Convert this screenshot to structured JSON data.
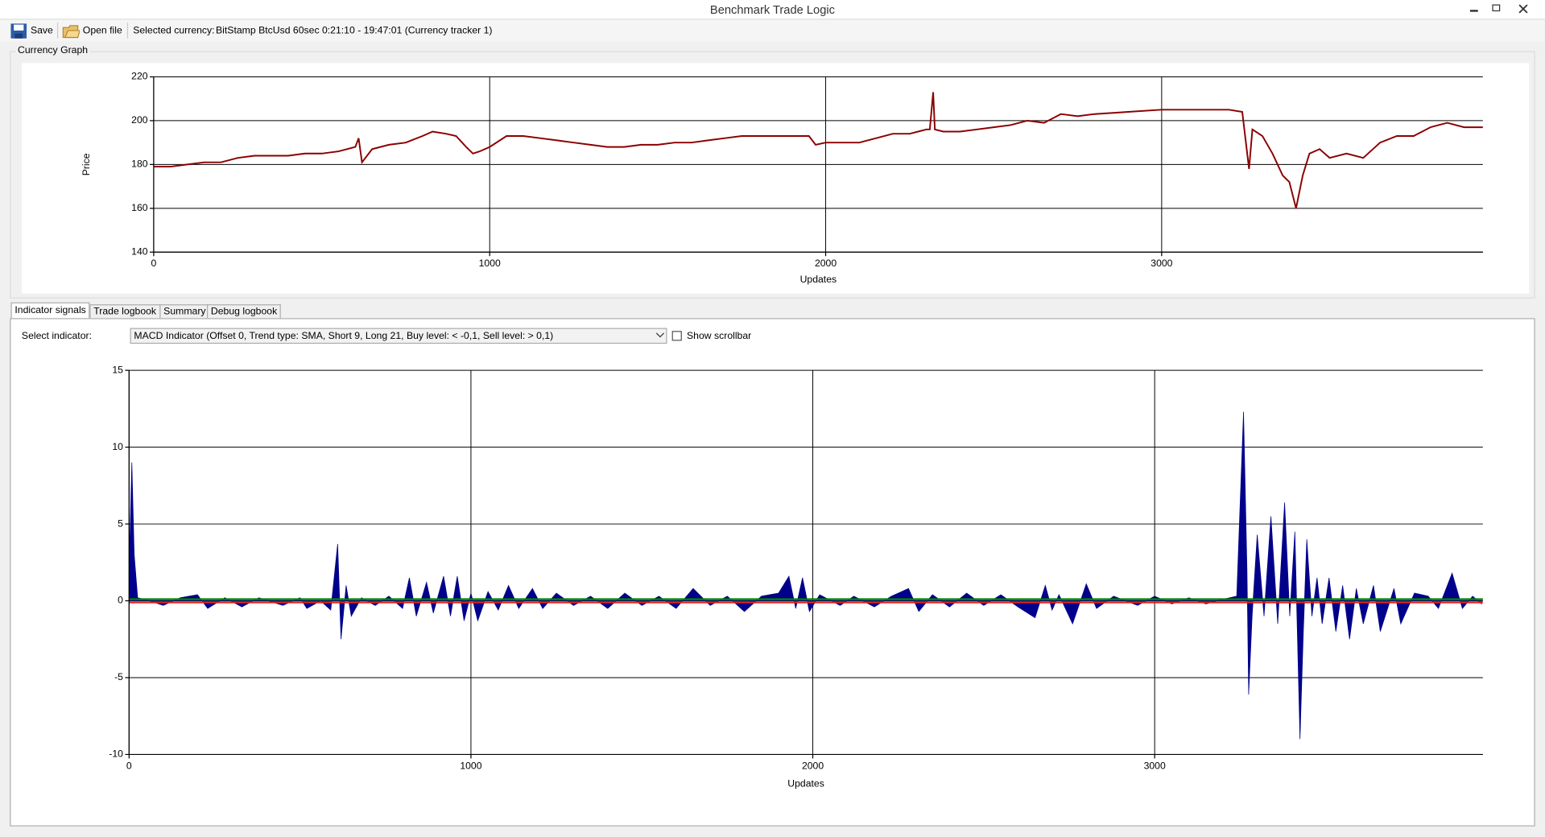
{
  "window": {
    "title": "Benchmark Trade Logic"
  },
  "toolbar": {
    "save": "Save",
    "open_file": "Open file",
    "selected_currency_label": "Selected currency:",
    "selected_currency": "BitStamp BtcUsd 60sec 0:21:10 - 19:47:01 (Currency tracker 1)"
  },
  "tabs": [
    "Indicator signals",
    "Trade logbook",
    "Summary",
    "Debug logbook"
  ],
  "indicator_panel": {
    "select_label": "Select indicator:",
    "selected": "MACD Indicator (Offset 0, Trend type: SMA, Short 9, Long 21, Buy level: < -0,1, Sell level: > 0,1)",
    "show_scrollbar": "Show scrollbar"
  },
  "chart_data": [
    {
      "type": "line",
      "title": "Currency Graph",
      "x_label": "Updates",
      "y_label": "Price",
      "color": "#8b0000",
      "grid": true,
      "xlim": [
        0,
        3956
      ],
      "ylim": [
        140,
        220
      ],
      "xticks": [
        0,
        1000,
        2000,
        3000
      ],
      "yticks": [
        140,
        160,
        180,
        200,
        220
      ],
      "x": [
        0,
        50,
        100,
        150,
        200,
        250,
        300,
        350,
        400,
        450,
        500,
        550,
        600,
        610,
        620,
        650,
        700,
        750,
        800,
        830,
        870,
        900,
        930,
        950,
        970,
        1000,
        1050,
        1100,
        1150,
        1200,
        1250,
        1300,
        1350,
        1400,
        1450,
        1500,
        1550,
        1600,
        1650,
        1700,
        1750,
        1800,
        1900,
        1950,
        1970,
        2000,
        2050,
        2100,
        2150,
        2200,
        2250,
        2300,
        2310,
        2320,
        2325,
        2350,
        2400,
        2450,
        2500,
        2550,
        2600,
        2650,
        2700,
        2750,
        2800,
        2900,
        3000,
        3100,
        3200,
        3240,
        3260,
        3270,
        3300,
        3330,
        3360,
        3380,
        3400,
        3420,
        3440,
        3470,
        3500,
        3550,
        3600,
        3650,
        3700,
        3750,
        3800,
        3850,
        3900,
        3956
      ],
      "values": [
        179,
        179,
        180,
        181,
        181,
        183,
        184,
        184,
        184,
        185,
        185,
        186,
        188,
        192,
        181,
        187,
        189,
        190,
        193,
        195,
        194,
        193,
        188,
        185,
        186,
        188,
        193,
        193,
        192,
        191,
        190,
        189,
        188,
        188,
        189,
        189,
        190,
        190,
        191,
        192,
        193,
        193,
        193,
        193,
        189,
        190,
        190,
        190,
        192,
        194,
        194,
        196,
        196,
        213,
        196,
        195,
        195,
        196,
        197,
        198,
        200,
        199,
        203,
        202,
        203,
        204,
        205,
        205,
        205,
        204,
        178,
        196,
        193,
        185,
        175,
        172,
        160,
        175,
        185,
        187,
        183,
        185,
        183,
        190,
        193,
        193,
        197,
        199,
        197,
        197
      ]
    },
    {
      "type": "area",
      "x_label": "Updates",
      "color": "#00008b",
      "grid": true,
      "xlim": [
        0,
        3960
      ],
      "ylim": [
        -10,
        15
      ],
      "xticks": [
        0,
        1000,
        2000,
        3000
      ],
      "yticks": [
        -10,
        -5,
        0,
        5,
        10,
        15
      ],
      "levels": [
        {
          "value": 0.1,
          "color": "#008000"
        },
        {
          "value": -0.1,
          "color": "#e02020"
        }
      ],
      "x": [
        0,
        8,
        15,
        25,
        60,
        100,
        150,
        200,
        230,
        280,
        330,
        380,
        450,
        500,
        520,
        560,
        590,
        610,
        620,
        635,
        650,
        680,
        720,
        760,
        800,
        820,
        840,
        870,
        890,
        920,
        940,
        960,
        980,
        1000,
        1020,
        1050,
        1080,
        1110,
        1140,
        1180,
        1210,
        1250,
        1300,
        1350,
        1400,
        1450,
        1500,
        1550,
        1600,
        1650,
        1700,
        1750,
        1800,
        1850,
        1900,
        1930,
        1950,
        1970,
        1990,
        2020,
        2080,
        2120,
        2180,
        2230,
        2280,
        2310,
        2350,
        2400,
        2450,
        2500,
        2550,
        2600,
        2650,
        2680,
        2700,
        2720,
        2760,
        2800,
        2830,
        2880,
        2950,
        3000,
        3050,
        3100,
        3150,
        3200,
        3240,
        3260,
        3270,
        3275,
        3285,
        3300,
        3320,
        3340,
        3360,
        3380,
        3395,
        3410,
        3425,
        3435,
        3445,
        3460,
        3475,
        3490,
        3510,
        3530,
        3550,
        3570,
        3590,
        3610,
        3640,
        3660,
        3700,
        3720,
        3760,
        3800,
        3830,
        3870,
        3900,
        3930,
        3956
      ],
      "values": [
        2,
        9,
        3,
        0.2,
        0,
        -0.3,
        0.2,
        0.4,
        -0.5,
        0.2,
        -0.4,
        0.2,
        -0.3,
        0.2,
        -0.5,
        0,
        -0.6,
        3.7,
        -2.5,
        1,
        -1,
        0.2,
        -0.3,
        0.3,
        -0.5,
        1.5,
        -1,
        1.2,
        -0.8,
        1.6,
        -1,
        1.6,
        -1.3,
        0.5,
        -1.3,
        0.6,
        -0.6,
        1,
        -0.5,
        0.8,
        -0.5,
        0.5,
        -0.3,
        0.3,
        -0.5,
        0.5,
        -0.3,
        0.3,
        -0.5,
        0.8,
        -0.3,
        0.3,
        -0.7,
        0.3,
        0.5,
        1.6,
        -0.5,
        1.5,
        -0.7,
        0.4,
        -0.3,
        0.3,
        -0.4,
        0.3,
        0.8,
        -0.7,
        0.4,
        -0.4,
        0.5,
        -0.3,
        0.4,
        -0.4,
        -1.1,
        1,
        -0.6,
        0.4,
        -1.5,
        1.1,
        -0.5,
        0.3,
        -0.3,
        0.3,
        -0.2,
        0.2,
        -0.2,
        0.1,
        0.3,
        12.3,
        2,
        -6.1,
        -1,
        4.3,
        -1,
        5.5,
        -1.5,
        6.4,
        -1,
        4.5,
        -9,
        -2,
        4,
        -1,
        1.5,
        -1.5,
        1.5,
        -2,
        1,
        -2.5,
        0.8,
        -1.5,
        1,
        -2,
        0.8,
        -1.5,
        0.5,
        0.3,
        -0.5,
        1.8,
        -0.5,
        0.3,
        -0.2
      ]
    }
  ]
}
